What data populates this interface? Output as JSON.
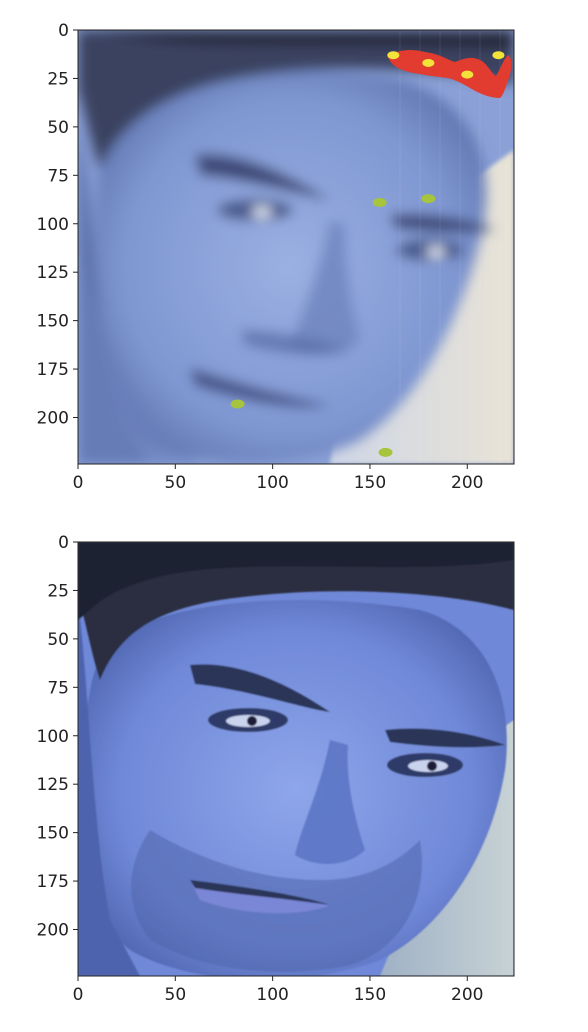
{
  "chart_data": [
    {
      "type": "image",
      "title": "",
      "xlabel": "",
      "ylabel": "",
      "xlim": [
        0,
        224
      ],
      "ylim": [
        224,
        0
      ],
      "x_ticks": [
        0,
        50,
        100,
        150,
        200
      ],
      "y_ticks": [
        0,
        25,
        50,
        75,
        100,
        125,
        150,
        175,
        200
      ],
      "image": "face-heatmap-overlay",
      "colors": {
        "face_tint": "#7d93cf",
        "heat_hot": "#e23b2f",
        "heat_peak": "#f3e23a",
        "heat_low": "#a6c43c"
      },
      "heatmap_blobs": [
        {
          "x": 155,
          "y": 89,
          "level": "low"
        },
        {
          "x": 180,
          "y": 87,
          "level": "low"
        },
        {
          "x": 82,
          "y": 193,
          "level": "low"
        },
        {
          "x": 158,
          "y": 218,
          "level": "low"
        },
        {
          "x": 162,
          "y": 13,
          "level": "high"
        },
        {
          "x": 180,
          "y": 17,
          "level": "high"
        },
        {
          "x": 200,
          "y": 23,
          "level": "high"
        },
        {
          "x": 216,
          "y": 13,
          "level": "high"
        }
      ]
    },
    {
      "type": "image",
      "title": "",
      "xlabel": "",
      "ylabel": "",
      "xlim": [
        0,
        224
      ],
      "ylim": [
        224,
        0
      ],
      "x_ticks": [
        0,
        50,
        100,
        150,
        200
      ],
      "y_ticks": [
        0,
        25,
        50,
        75,
        100,
        125,
        150,
        175,
        200
      ],
      "image": "face-original",
      "colors": {
        "face_tint": "#6f88d8",
        "hair": "#26283c"
      }
    }
  ]
}
